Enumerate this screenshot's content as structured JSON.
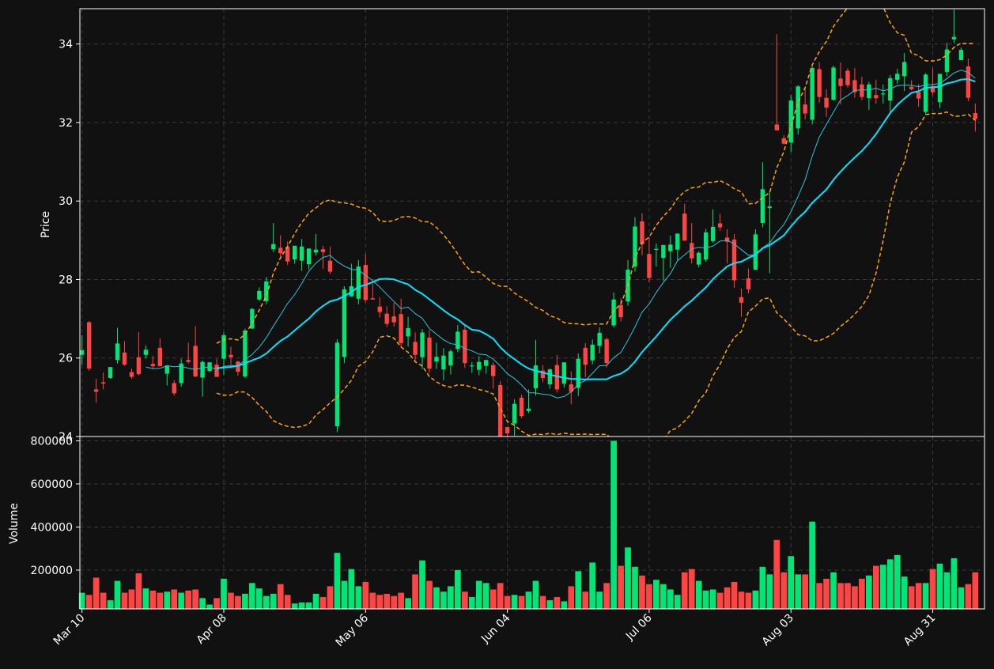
{
  "colors": {
    "background": "#111111",
    "up": "#00e676",
    "down": "#ff4444",
    "ma_fast": "#26c6da",
    "ma_slow": "#00e5ff",
    "bollinger": "#ffa500",
    "grid": "#3a3a3a",
    "text": "#ffffff"
  },
  "chart_data": {
    "type": "candlestick",
    "panels": [
      {
        "name": "price",
        "ylabel": "Price",
        "ylim": [
          24,
          34.9
        ],
        "yticks": [
          24,
          26,
          28,
          30,
          32,
          34
        ]
      },
      {
        "name": "volume",
        "ylabel": "Volume",
        "ylim": [
          20000,
          820000
        ],
        "yticks": [
          200000,
          400000,
          600000,
          800000
        ]
      }
    ],
    "xtick_labels": [
      "Mar 10",
      "Apr 08",
      "May 06",
      "Jun 04",
      "Jul 06",
      "Aug 03",
      "Aug 31"
    ],
    "xtick_indices": [
      0,
      20,
      40,
      60,
      80,
      100,
      120
    ],
    "grid": true,
    "ohlcv": [
      [
        26.08,
        26.58,
        25.83,
        26.2,
        95000
      ],
      [
        26.91,
        26.94,
        25.68,
        25.73,
        85000
      ],
      [
        25.2,
        25.47,
        24.86,
        25.14,
        165000
      ],
      [
        25.38,
        25.63,
        25.2,
        25.35,
        95000
      ],
      [
        25.49,
        25.74,
        25.47,
        25.77,
        60000
      ],
      [
        25.95,
        26.77,
        25.86,
        26.37,
        150000
      ],
      [
        26.14,
        26.43,
        25.8,
        25.83,
        95000
      ],
      [
        25.64,
        25.73,
        25.47,
        25.52,
        110000
      ],
      [
        26.02,
        26.66,
        25.56,
        25.59,
        185000
      ],
      [
        26.08,
        26.32,
        25.99,
        26.21,
        115000
      ],
      [
        25.85,
        26.05,
        25.72,
        25.79,
        105000
      ],
      [
        26.26,
        26.5,
        25.8,
        25.79,
        95000
      ],
      [
        25.6,
        25.82,
        25.3,
        25.81,
        100000
      ],
      [
        25.36,
        25.43,
        25.04,
        25.1,
        110000
      ],
      [
        25.36,
        25.98,
        25.27,
        25.86,
        95000
      ],
      [
        25.95,
        26.39,
        25.86,
        25.9,
        105000
      ],
      [
        26.31,
        26.81,
        25.51,
        25.53,
        110000
      ],
      [
        25.5,
        25.94,
        25.01,
        25.9,
        70000
      ],
      [
        25.67,
        25.84,
        25.64,
        25.89,
        40000
      ],
      [
        25.83,
        25.98,
        25.68,
        25.52,
        70000
      ],
      [
        25.98,
        26.65,
        25.57,
        26.58,
        160000
      ],
      [
        26.08,
        26.29,
        25.84,
        26.02,
        95000
      ],
      [
        25.91,
        25.93,
        25.55,
        25.65,
        80000
      ],
      [
        25.53,
        26.75,
        25.49,
        26.7,
        90000
      ],
      [
        26.75,
        27.27,
        26.74,
        27.25,
        140000
      ],
      [
        27.49,
        27.8,
        27.45,
        27.71,
        115000
      ],
      [
        27.45,
        28.07,
        27.37,
        27.95,
        80000
      ],
      [
        28.77,
        29.44,
        28.7,
        28.9,
        90000
      ],
      [
        28.81,
        29.13,
        28.59,
        28.67,
        135000
      ],
      [
        28.83,
        28.97,
        28.37,
        28.46,
        85000
      ],
      [
        28.51,
        28.85,
        28.4,
        28.86,
        45000
      ],
      [
        28.48,
        29.03,
        28.22,
        28.84,
        50000
      ],
      [
        28.39,
        28.75,
        28.26,
        28.79,
        50000
      ],
      [
        28.69,
        29.16,
        28.61,
        28.76,
        90000
      ],
      [
        28.77,
        28.86,
        28.27,
        28.7,
        75000
      ],
      [
        28.48,
        28.84,
        28.14,
        28.2,
        125000
      ],
      [
        24.26,
        26.48,
        24.11,
        26.39,
        280000
      ],
      [
        26.03,
        27.83,
        25.87,
        27.75,
        150000
      ],
      [
        27.57,
        28.4,
        27.56,
        27.83,
        205000
      ],
      [
        27.51,
        28.5,
        27.37,
        28.33,
        125000
      ],
      [
        28.37,
        28.65,
        27.42,
        27.48,
        145000
      ],
      [
        27.52,
        27.95,
        27.51,
        27.49,
        95000
      ],
      [
        27.31,
        27.55,
        27.03,
        27.17,
        85000
      ],
      [
        27.13,
        27.32,
        26.79,
        26.87,
        90000
      ],
      [
        27.06,
        27.41,
        26.8,
        26.91,
        80000
      ],
      [
        27.12,
        27.51,
        26.27,
        26.38,
        95000
      ],
      [
        26.55,
        27.05,
        26.29,
        26.76,
        70000
      ],
      [
        26.41,
        26.65,
        25.93,
        26.08,
        180000
      ],
      [
        26.02,
        26.74,
        25.72,
        26.65,
        245000
      ],
      [
        26.52,
        26.71,
        25.62,
        25.73,
        150000
      ],
      [
        25.91,
        26.39,
        25.72,
        26.03,
        120000
      ],
      [
        25.71,
        26.25,
        25.43,
        26.06,
        100000
      ],
      [
        25.81,
        26.22,
        25.58,
        26.17,
        125000
      ],
      [
        26.23,
        26.84,
        26.15,
        26.67,
        200000
      ],
      [
        26.72,
        26.84,
        25.75,
        25.87,
        100000
      ],
      [
        25.79,
        25.9,
        25.62,
        25.81,
        75000
      ],
      [
        25.7,
        26.05,
        25.56,
        25.9,
        150000
      ],
      [
        25.8,
        25.92,
        25.6,
        25.95,
        140000
      ],
      [
        25.82,
        25.89,
        25.22,
        25.54,
        110000
      ],
      [
        25.31,
        25.41,
        24.0,
        23.95,
        140000
      ],
      [
        24.24,
        24.25,
        23.6,
        24.08,
        80000
      ],
      [
        24.33,
        24.95,
        24.02,
        24.83,
        85000
      ],
      [
        24.99,
        25.07,
        24.47,
        24.52,
        80000
      ],
      [
        24.65,
        25.2,
        24.6,
        24.71,
        100000
      ],
      [
        25.23,
        26.46,
        25.04,
        25.81,
        150000
      ],
      [
        25.68,
        25.82,
        25.38,
        25.49,
        80000
      ],
      [
        25.33,
        25.73,
        25.22,
        25.71,
        60000
      ],
      [
        25.82,
        26.08,
        25.12,
        25.2,
        75000
      ],
      [
        25.35,
        25.86,
        25.24,
        25.89,
        55000
      ],
      [
        25.33,
        25.66,
        24.82,
        25.14,
        125000
      ],
      [
        25.24,
        26.12,
        25.03,
        25.98,
        195000
      ],
      [
        26.26,
        26.38,
        25.51,
        25.83,
        100000
      ],
      [
        25.94,
        26.47,
        25.84,
        26.34,
        235000
      ],
      [
        26.31,
        26.78,
        26.12,
        26.64,
        100000
      ],
      [
        26.48,
        26.52,
        25.76,
        25.87,
        140000
      ],
      [
        26.83,
        27.67,
        26.78,
        27.49,
        800000
      ],
      [
        27.35,
        27.52,
        26.93,
        27.04,
        220000
      ],
      [
        27.44,
        28.5,
        27.33,
        28.25,
        305000
      ],
      [
        28.33,
        29.59,
        28.2,
        29.35,
        215000
      ],
      [
        29.48,
        29.69,
        28.62,
        28.9,
        175000
      ],
      [
        28.65,
        29.07,
        27.93,
        28.04,
        135000
      ],
      [
        28.78,
        28.92,
        28.33,
        28.78,
        155000
      ],
      [
        28.55,
        28.87,
        27.97,
        28.88,
        135000
      ],
      [
        28.72,
        29.12,
        28.3,
        28.89,
        110000
      ],
      [
        28.76,
        29.17,
        28.47,
        29.17,
        85000
      ],
      [
        29.68,
        29.93,
        28.99,
        28.99,
        190000
      ],
      [
        28.93,
        29.44,
        28.41,
        28.54,
        205000
      ],
      [
        28.38,
        28.72,
        28.31,
        28.68,
        150000
      ],
      [
        28.51,
        29.29,
        28.45,
        29.2,
        105000
      ],
      [
        28.98,
        29.79,
        28.94,
        29.34,
        110000
      ],
      [
        29.43,
        29.67,
        29.24,
        29.33,
        95000
      ],
      [
        29.07,
        29.28,
        28.41,
        28.96,
        120000
      ],
      [
        29.02,
        29.16,
        27.79,
        27.98,
        145000
      ],
      [
        27.55,
        27.77,
        27.05,
        27.41,
        100000
      ],
      [
        28.03,
        28.28,
        27.65,
        27.75,
        95000
      ],
      [
        28.25,
        29.28,
        28.26,
        29.15,
        105000
      ],
      [
        29.44,
        30.99,
        29.33,
        30.3,
        215000
      ],
      [
        29.82,
        30.24,
        28.16,
        29.86,
        180000
      ],
      [
        31.95,
        34.25,
        31.81,
        31.8,
        340000
      ],
      [
        31.6,
        31.68,
        31.44,
        31.46,
        190000
      ],
      [
        31.49,
        32.7,
        31.25,
        32.56,
        265000
      ],
      [
        31.85,
        32.95,
        31.69,
        32.92,
        180000
      ],
      [
        32.46,
        32.87,
        32.08,
        32.23,
        180000
      ],
      [
        32.07,
        33.43,
        31.95,
        33.39,
        425000
      ],
      [
        33.36,
        33.54,
        32.5,
        32.65,
        140000
      ],
      [
        32.63,
        32.85,
        32.14,
        32.38,
        160000
      ],
      [
        32.58,
        33.45,
        32.55,
        33.4,
        190000
      ],
      [
        33.12,
        33.53,
        32.46,
        32.93,
        140000
      ],
      [
        33.32,
        33.38,
        32.89,
        32.95,
        140000
      ],
      [
        33.08,
        33.39,
        32.63,
        32.77,
        125000
      ],
      [
        32.97,
        33.17,
        32.57,
        32.65,
        160000
      ],
      [
        32.62,
        33.04,
        32.32,
        32.97,
        175000
      ],
      [
        32.7,
        33.09,
        32.48,
        32.62,
        220000
      ],
      [
        32.72,
        32.97,
        32.48,
        32.74,
        225000
      ],
      [
        32.56,
        33.21,
        32.23,
        33.13,
        250000
      ],
      [
        33.09,
        33.37,
        32.99,
        33.24,
        270000
      ],
      [
        33.18,
        33.77,
        32.8,
        33.54,
        170000
      ],
      [
        32.91,
        33.08,
        32.82,
        32.85,
        125000
      ],
      [
        32.78,
        32.98,
        32.4,
        32.61,
        140000
      ],
      [
        32.27,
        33.26,
        32.22,
        33.22,
        140000
      ],
      [
        32.93,
        33.38,
        32.69,
        32.77,
        205000
      ],
      [
        32.52,
        32.75,
        32.37,
        33.24,
        230000
      ],
      [
        33.29,
        34.03,
        33.18,
        33.86,
        190000
      ],
      [
        34.12,
        34.88,
        34.02,
        34.18,
        255000
      ],
      [
        33.59,
        33.91,
        33.6,
        33.85,
        120000
      ],
      [
        33.43,
        33.63,
        32.54,
        32.63,
        135000
      ],
      [
        32.24,
        32.48,
        31.77,
        32.09,
        190000
      ]
    ]
  }
}
